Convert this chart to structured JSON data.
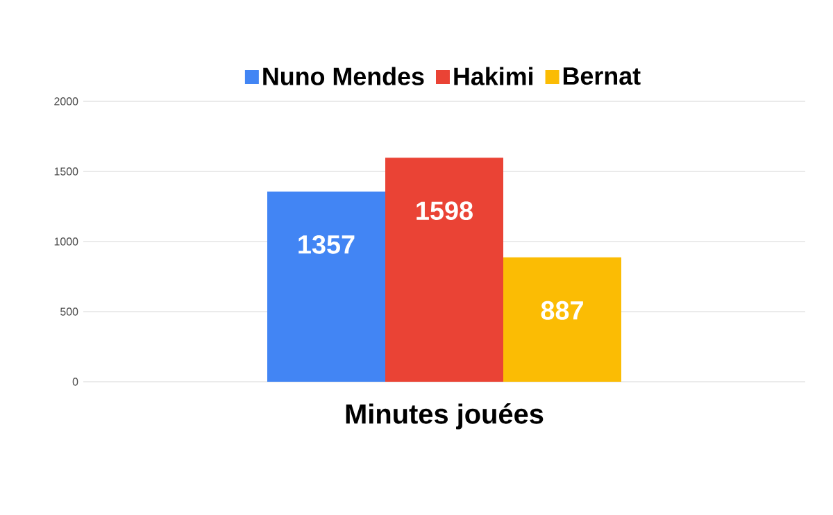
{
  "chart_data": {
    "type": "bar",
    "categories": [
      "Minutes jouées"
    ],
    "series": [
      {
        "name": "Nuno Mendes",
        "color": "#4285f4",
        "values": [
          1357
        ]
      },
      {
        "name": "Hakimi",
        "color": "#ea4335",
        "values": [
          1598
        ]
      },
      {
        "name": "Bernat",
        "color": "#fbbc04",
        "values": [
          887
        ]
      }
    ],
    "ylim": [
      0,
      2000
    ],
    "yticks": [
      0,
      500,
      1000,
      1500,
      2000
    ],
    "grid": "y",
    "legend": "top",
    "data_labels": true
  }
}
